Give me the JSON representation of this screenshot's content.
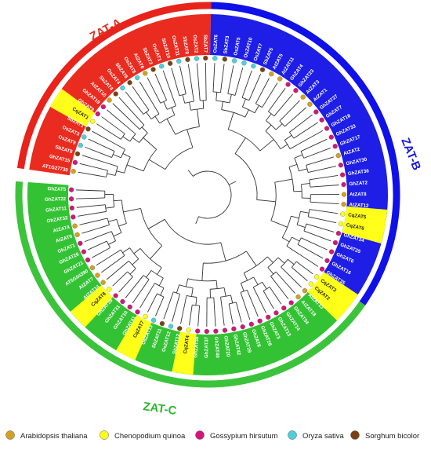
{
  "clades": [
    {
      "name": "ZAT-A",
      "label_color": "#e03020",
      "ring_color": "#e8231c",
      "fill_color": "#ea2b1f"
    },
    {
      "name": "ZAT-B",
      "label_color": "#1a1ae0",
      "ring_color": "#1010e8",
      "fill_color": "#1e1ee6"
    },
    {
      "name": "ZAT-C",
      "label_color": "#2db82d",
      "ring_color": "#3bc43b",
      "fill_color": "#33c233"
    }
  ],
  "species": [
    {
      "name": "Arabidopsis thaliana",
      "color": "#d4a020"
    },
    {
      "name": "Chenopodium quinoa",
      "color": "#ffff1a"
    },
    {
      "name": "Gossypium hirsutum",
      "color": "#d4157a"
    },
    {
      "name": "Oryza sativa",
      "color": "#4dd0dc"
    },
    {
      "name": "Sorghum bicolor",
      "color": "#7a4214"
    }
  ],
  "leaves_A": [
    {
      "label": "AT1G27730",
      "sp": 0
    },
    {
      "label": "GhZAT15",
      "sp": 2
    },
    {
      "label": "SbZAT8",
      "sp": 4
    },
    {
      "label": "OsZAT9",
      "sp": 3
    },
    {
      "label": "OsZAT3",
      "sp": 3
    },
    {
      "label": "SbZAT1",
      "sp": 4
    },
    {
      "label": "CqZAT1",
      "sp": 1
    },
    {
      "label": "GhZAT9",
      "sp": 2
    },
    {
      "label": "GhZAT19",
      "sp": 2
    },
    {
      "label": "AtZAT10",
      "sp": 0
    },
    {
      "label": "SbZAT4",
      "sp": 4
    },
    {
      "label": "OsZAT4",
      "sp": 3
    },
    {
      "label": "SbZAT6",
      "sp": 4
    },
    {
      "label": "OsZAT8",
      "sp": 3
    },
    {
      "label": "AtZAT6",
      "sp": 0
    },
    {
      "label": "SbZAT2",
      "sp": 4
    },
    {
      "label": "OsZAT1",
      "sp": 3
    },
    {
      "label": "SbZAT10",
      "sp": 4
    },
    {
      "label": "OsZAT11",
      "sp": 3
    },
    {
      "label": "SbZAT9",
      "sp": 4
    },
    {
      "label": "OsZAT2",
      "sp": 3
    },
    {
      "label": "SbZAT7",
      "sp": 4
    }
  ],
  "leaves_B": [
    {
      "label": "OsZAT6",
      "sp": 3
    },
    {
      "label": "SbZAT3",
      "sp": 4
    },
    {
      "label": "OsZAT5",
      "sp": 3
    },
    {
      "label": "OsZAT10",
      "sp": 3
    },
    {
      "label": "OsZAT7",
      "sp": 3
    },
    {
      "label": "SbZAT5",
      "sp": 4
    },
    {
      "label": "AtZAT5",
      "sp": 0
    },
    {
      "label": "AtZAT11",
      "sp": 0
    },
    {
      "label": "GhZAT4",
      "sp": 2
    },
    {
      "label": "GhZAT23",
      "sp": 2
    },
    {
      "label": "AtZAT3",
      "sp": 0
    },
    {
      "label": "AtZAT1",
      "sp": 0
    },
    {
      "label": "GhZAT27",
      "sp": 2
    },
    {
      "label": "GhZAT7",
      "sp": 2
    },
    {
      "label": "GhZAT18",
      "sp": 2
    },
    {
      "label": "GhZAT33",
      "sp": 2
    },
    {
      "label": "GhZAT17",
      "sp": 2
    },
    {
      "label": "AtZAT2",
      "sp": 0
    },
    {
      "label": "GhZAT30",
      "sp": 2
    },
    {
      "label": "GhZAT36",
      "sp": 2
    },
    {
      "label": "GhZAT2",
      "sp": 2
    },
    {
      "label": "AtZAT8",
      "sp": 0
    },
    {
      "label": "AtZAT12",
      "sp": 0
    },
    {
      "label": "CqZAT5",
      "sp": 1
    },
    {
      "label": "CqZAT6",
      "sp": 1
    },
    {
      "label": "GhZAT24",
      "sp": 2
    },
    {
      "label": "GhZAT25",
      "sp": 2
    },
    {
      "label": "GhZAT6",
      "sp": 2
    },
    {
      "label": "GhZAT16",
      "sp": 2
    },
    {
      "label": "GhZAT35",
      "sp": 2
    }
  ],
  "leaves_C": [
    {
      "label": "CqZAT3",
      "sp": 1
    },
    {
      "label": "CqZAT2",
      "sp": 1
    },
    {
      "label": "AtZAT13",
      "sp": 0
    },
    {
      "label": "AtZAT18",
      "sp": 0
    },
    {
      "label": "GhZAT34",
      "sp": 2
    },
    {
      "label": "GhZAT14",
      "sp": 2
    },
    {
      "label": "GhZAT13",
      "sp": 2
    },
    {
      "label": "GhZAT3",
      "sp": 2
    },
    {
      "label": "GhZAT28",
      "sp": 2
    },
    {
      "label": "GhZAT8",
      "sp": 2
    },
    {
      "label": "GhZAT29",
      "sp": 2
    },
    {
      "label": "GhZAT42",
      "sp": 2
    },
    {
      "label": "GhZAT20",
      "sp": 2
    },
    {
      "label": "GhZAT40",
      "sp": 2
    },
    {
      "label": "GhZAT37",
      "sp": 2
    },
    {
      "label": "GhZAT38",
      "sp": 2
    },
    {
      "label": "CqZAT4",
      "sp": 1
    },
    {
      "label": "SbZAT12",
      "sp": 4
    },
    {
      "label": "OsZAT12",
      "sp": 3
    },
    {
      "label": "SbZAT11",
      "sp": 4
    },
    {
      "label": "OsZAT13",
      "sp": 3
    },
    {
      "label": "CqZAT7",
      "sp": 1
    },
    {
      "label": "GhZAT41",
      "sp": 2
    },
    {
      "label": "GhZAT10",
      "sp": 2
    },
    {
      "label": "GhZAT31",
      "sp": 2
    },
    {
      "label": "GhZAT39",
      "sp": 2
    },
    {
      "label": "CqZAT8",
      "sp": 1
    },
    {
      "label": "AtZAT14",
      "sp": 0
    },
    {
      "label": "AtZAT7",
      "sp": 0
    },
    {
      "label": "AT5G04390",
      "sp": 0
    },
    {
      "label": "GhZAT21",
      "sp": 2
    },
    {
      "label": "GhZAT26",
      "sp": 2
    },
    {
      "label": "GhZAT1",
      "sp": 2
    },
    {
      "label": "AtZAT9",
      "sp": 0
    },
    {
      "label": "AtZAT4",
      "sp": 0
    },
    {
      "label": "GhZAT32",
      "sp": 2
    },
    {
      "label": "GhZAT11",
      "sp": 2
    },
    {
      "label": "GhZAT22",
      "sp": 2
    },
    {
      "label": "GhZAT5",
      "sp": 2
    }
  ]
}
